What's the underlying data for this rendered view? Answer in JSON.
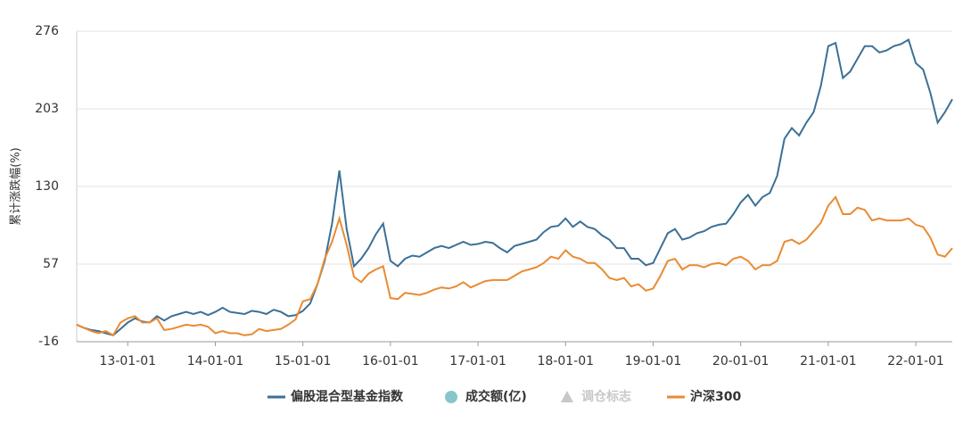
{
  "chart_data": {
    "type": "line",
    "y_label": "累计涨跌幅(%)",
    "ylim": [
      -16,
      276
    ],
    "yticks": [
      -16,
      57,
      130,
      203,
      276
    ],
    "grid": true,
    "xticks": [
      "13-01-01",
      "14-01-01",
      "15-01-01",
      "16-01-01",
      "17-01-01",
      "18-01-01",
      "19-01-01",
      "20-01-01",
      "21-01-01",
      "22-01-01"
    ],
    "x": [
      "12-06-01",
      "12-07-01",
      "12-08-01",
      "12-09-01",
      "12-10-01",
      "12-11-01",
      "12-12-01",
      "13-01-01",
      "13-02-01",
      "13-03-01",
      "13-04-01",
      "13-05-01",
      "13-06-01",
      "13-07-01",
      "13-08-01",
      "13-09-01",
      "13-10-01",
      "13-11-01",
      "13-12-01",
      "14-01-01",
      "14-02-01",
      "14-03-01",
      "14-04-01",
      "14-05-01",
      "14-06-01",
      "14-07-01",
      "14-08-01",
      "14-09-01",
      "14-10-01",
      "14-11-01",
      "14-12-01",
      "15-01-01",
      "15-02-01",
      "15-03-01",
      "15-04-01",
      "15-05-01",
      "15-06-01",
      "15-07-01",
      "15-08-01",
      "15-09-01",
      "15-10-01",
      "15-11-01",
      "15-12-01",
      "16-01-01",
      "16-02-01",
      "16-03-01",
      "16-04-01",
      "16-05-01",
      "16-06-01",
      "16-07-01",
      "16-08-01",
      "16-09-01",
      "16-10-01",
      "16-11-01",
      "16-12-01",
      "17-01-01",
      "17-02-01",
      "17-03-01",
      "17-04-01",
      "17-05-01",
      "17-06-01",
      "17-07-01",
      "17-08-01",
      "17-09-01",
      "17-10-01",
      "17-11-01",
      "17-12-01",
      "18-01-01",
      "18-02-01",
      "18-03-01",
      "18-04-01",
      "18-05-01",
      "18-06-01",
      "18-07-01",
      "18-08-01",
      "18-09-01",
      "18-10-01",
      "18-11-01",
      "18-12-01",
      "19-01-01",
      "19-02-01",
      "19-03-01",
      "19-04-01",
      "19-05-01",
      "19-06-01",
      "19-07-01",
      "19-08-01",
      "19-09-01",
      "19-10-01",
      "19-11-01",
      "19-12-01",
      "20-01-01",
      "20-02-01",
      "20-03-01",
      "20-04-01",
      "20-05-01",
      "20-06-01",
      "20-07-01",
      "20-08-01",
      "20-09-01",
      "20-10-01",
      "20-11-01",
      "20-12-01",
      "21-01-01",
      "21-02-01",
      "21-03-01",
      "21-04-01",
      "21-05-01",
      "21-06-01",
      "21-07-01",
      "21-08-01",
      "21-09-01",
      "21-10-01",
      "21-11-01",
      "21-12-01",
      "22-01-01",
      "22-02-01",
      "22-03-01",
      "22-04-01",
      "22-05-01",
      "22-06-01"
    ],
    "series": [
      {
        "name": "偏股混合型基金指数",
        "color": "#3b7097",
        "values": [
          0,
          -3,
          -5,
          -6,
          -8,
          -10,
          -4,
          2,
          6,
          3,
          2,
          8,
          4,
          8,
          10,
          12,
          10,
          12,
          9,
          12,
          16,
          12,
          11,
          10,
          13,
          12,
          10,
          14,
          12,
          8,
          9,
          13,
          20,
          38,
          60,
          95,
          145,
          90,
          55,
          62,
          72,
          85,
          95,
          60,
          55,
          62,
          65,
          64,
          68,
          72,
          74,
          72,
          75,
          78,
          75,
          76,
          78,
          77,
          72,
          68,
          74,
          76,
          78,
          80,
          87,
          92,
          93,
          100,
          92,
          97,
          92,
          90,
          84,
          80,
          72,
          72,
          62,
          62,
          56,
          58,
          72,
          86,
          90,
          80,
          82,
          86,
          88,
          92,
          94,
          95,
          104,
          115,
          122,
          112,
          120,
          124,
          140,
          175,
          185,
          178,
          190,
          200,
          225,
          262,
          265,
          232,
          238,
          250,
          262,
          262,
          256,
          258,
          262,
          264,
          268,
          246,
          240,
          218,
          190,
          200,
          212
        ]
      },
      {
        "name": "沪深300",
        "color": "#e98b32",
        "values": [
          0,
          -3,
          -6,
          -8,
          -6,
          -10,
          2,
          6,
          8,
          2,
          2,
          6,
          -5,
          -4,
          -2,
          0,
          -1,
          0,
          -2,
          -8,
          -6,
          -8,
          -8,
          -10,
          -9,
          -4,
          -6,
          -5,
          -4,
          0,
          5,
          22,
          24,
          38,
          62,
          78,
          100,
          75,
          45,
          40,
          48,
          52,
          55,
          25,
          24,
          30,
          29,
          28,
          30,
          33,
          35,
          34,
          36,
          40,
          35,
          38,
          41,
          42,
          42,
          42,
          46,
          50,
          52,
          54,
          58,
          64,
          62,
          70,
          64,
          62,
          58,
          58,
          52,
          44,
          42,
          44,
          36,
          38,
          32,
          34,
          46,
          60,
          62,
          52,
          56,
          56,
          54,
          57,
          58,
          56,
          62,
          64,
          60,
          52,
          56,
          56,
          60,
          78,
          80,
          76,
          80,
          88,
          96,
          112,
          120,
          104,
          104,
          110,
          108,
          98,
          100,
          98,
          98,
          98,
          100,
          94,
          92,
          82,
          66,
          64,
          72
        ]
      }
    ],
    "legend_extra": [
      {
        "name": "成交额(亿)",
        "marker": "circle",
        "color": "#87c6c9"
      },
      {
        "name": "调仓标志",
        "marker": "triangle",
        "color": "#c8c8c8"
      }
    ],
    "legend_order": [
      "series.0",
      "legend_extra.0",
      "legend_extra.1",
      "series.1"
    ]
  }
}
